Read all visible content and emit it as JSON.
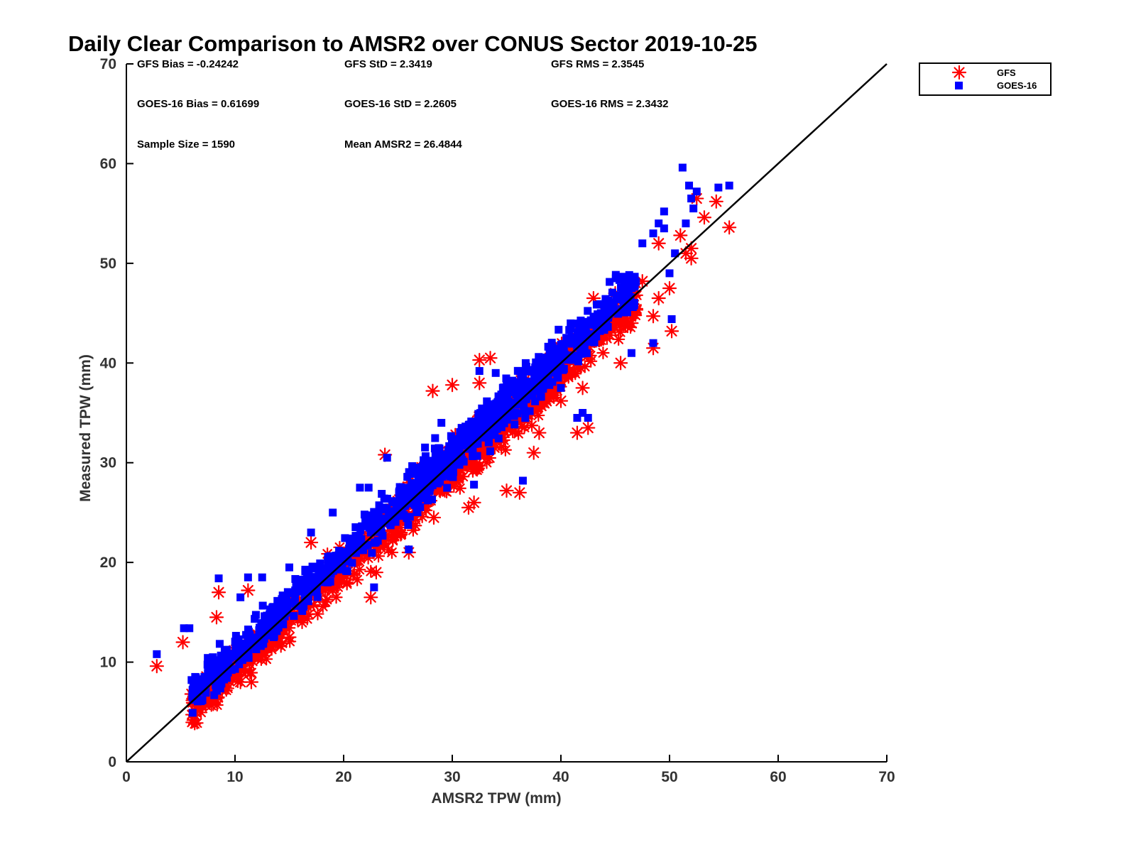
{
  "chart_data": {
    "type": "scatter",
    "title": "Daily Clear Comparison to AMSR2 over CONUS Sector 2019-10-25",
    "xlabel": "AMSR2 TPW (mm)",
    "ylabel": "Measured TPW (mm)",
    "xlim": [
      0,
      70
    ],
    "ylim": [
      0,
      70
    ],
    "xticks": [
      "0",
      "10",
      "20",
      "30",
      "40",
      "50",
      "60",
      "70"
    ],
    "yticks": [
      "0",
      "10",
      "20",
      "30",
      "40",
      "50",
      "60",
      "70"
    ],
    "grid": false,
    "legend_position": "outside top-right",
    "reference_line": {
      "x": [
        0,
        70
      ],
      "y": [
        0,
        70
      ],
      "color": "#000000"
    },
    "stats": {
      "gfs_bias": "GFS Bias = -0.24242",
      "gfs_std": "GFS StD = 2.3419",
      "gfs_rms": "GFS RMS = 2.3545",
      "goes_bias": "GOES-16 Bias = 0.61699",
      "goes_std": "GOES-16 StD = 2.2605",
      "goes_rms": "GOES-16 RMS = 2.3432",
      "sample_size": "Sample Size = 1590",
      "mean_amsr2": "Mean AMSR2 = 26.4844"
    },
    "series": [
      {
        "name": "GFS",
        "marker": "asterisk",
        "color": "#ff0000",
        "sample_size": 1590,
        "bias": -0.24242,
        "std": 2.3419,
        "points": [
          [
            2.8,
            9.6
          ],
          [
            5.2,
            12.0
          ],
          [
            6.0,
            6.8
          ],
          [
            7.0,
            6.5
          ],
          [
            8.0,
            5.8
          ],
          [
            8.5,
            17.0
          ],
          [
            11.2,
            17.2
          ],
          [
            8.3,
            14.5
          ],
          [
            10.5,
            8.0
          ],
          [
            11.5,
            8.0
          ],
          [
            15.0,
            12.5
          ],
          [
            17.0,
            22.0
          ],
          [
            19.0,
            17.2
          ],
          [
            22.5,
            16.5
          ],
          [
            23.0,
            19.0
          ],
          [
            23.8,
            30.8
          ],
          [
            24.5,
            22.8
          ],
          [
            26.0,
            21.0
          ],
          [
            28.3,
            24.5
          ],
          [
            28.2,
            37.2
          ],
          [
            30.0,
            37.8
          ],
          [
            31.5,
            25.5
          ],
          [
            32.0,
            26.0
          ],
          [
            32.5,
            38.0
          ],
          [
            32.5,
            40.3
          ],
          [
            33.5,
            40.5
          ],
          [
            35.0,
            27.2
          ],
          [
            36.2,
            27.0
          ],
          [
            37.5,
            31.0
          ],
          [
            38.0,
            33.0
          ],
          [
            40.0,
            36.2
          ],
          [
            41.5,
            33.0
          ],
          [
            42.0,
            37.5
          ],
          [
            42.5,
            33.5
          ],
          [
            43.0,
            46.5
          ],
          [
            45.0,
            47.0
          ],
          [
            45.5,
            40.0
          ],
          [
            46.5,
            44.0
          ],
          [
            47.5,
            48.2
          ],
          [
            48.5,
            41.5
          ],
          [
            48.5,
            44.7
          ],
          [
            49.0,
            46.5
          ],
          [
            49.0,
            52.0
          ],
          [
            50.0,
            47.5
          ],
          [
            50.2,
            43.2
          ],
          [
            51.0,
            52.8
          ],
          [
            51.5,
            51.0
          ],
          [
            52.0,
            50.5
          ],
          [
            52.0,
            51.5
          ],
          [
            52.5,
            56.5
          ],
          [
            53.2,
            54.6
          ],
          [
            54.3,
            56.2
          ],
          [
            55.5,
            53.6
          ]
        ]
      },
      {
        "name": "GOES-16",
        "marker": "square",
        "color": "#0000ff",
        "sample_size": 1590,
        "bias": 0.61699,
        "std": 2.2605,
        "points": [
          [
            2.8,
            10.8
          ],
          [
            5.3,
            13.4
          ],
          [
            5.8,
            13.4
          ],
          [
            6.0,
            8.2
          ],
          [
            8.5,
            18.4
          ],
          [
            10.5,
            16.5
          ],
          [
            11.2,
            18.5
          ],
          [
            12.5,
            18.5
          ],
          [
            15.0,
            19.5
          ],
          [
            17.0,
            23.0
          ],
          [
            19.0,
            25.0
          ],
          [
            21.5,
            27.5
          ],
          [
            22.3,
            27.5
          ],
          [
            22.5,
            23.0
          ],
          [
            22.8,
            17.5
          ],
          [
            24.0,
            30.5
          ],
          [
            26.0,
            21.3
          ],
          [
            29.0,
            34.0
          ],
          [
            32.0,
            27.8
          ],
          [
            32.5,
            39.2
          ],
          [
            34.0,
            39.0
          ],
          [
            36.5,
            28.2
          ],
          [
            40.0,
            37.5
          ],
          [
            41.5,
            34.5
          ],
          [
            42.0,
            35.0
          ],
          [
            42.5,
            34.5
          ],
          [
            44.0,
            45.5
          ],
          [
            46.5,
            41.0
          ],
          [
            47.5,
            52.0
          ],
          [
            48.5,
            42.0
          ],
          [
            48.5,
            53.0
          ],
          [
            49.0,
            54.0
          ],
          [
            49.5,
            53.5
          ],
          [
            49.5,
            55.2
          ],
          [
            50.0,
            49.0
          ],
          [
            50.2,
            44.4
          ],
          [
            50.5,
            51.0
          ],
          [
            51.2,
            59.6
          ],
          [
            51.5,
            54.0
          ],
          [
            51.8,
            57.8
          ],
          [
            52.0,
            56.5
          ],
          [
            52.2,
            55.5
          ],
          [
            52.5,
            57.2
          ],
          [
            54.5,
            57.6
          ],
          [
            55.5,
            57.8
          ]
        ]
      }
    ]
  }
}
